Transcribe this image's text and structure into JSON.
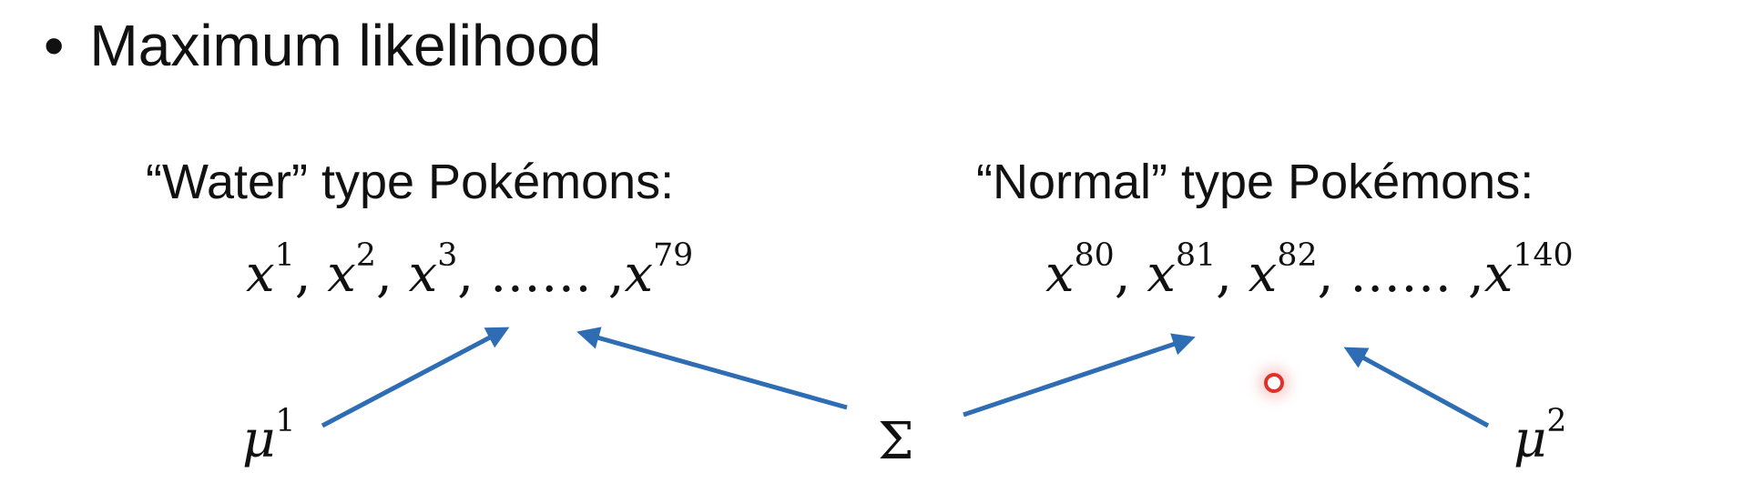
{
  "slide": {
    "bullet": {
      "symbol": "•",
      "text": "Maximum likelihood"
    },
    "water_group": {
      "heading": "“Water” type Pokémons:",
      "samples": {
        "variable": "x",
        "sup1": "1",
        "sup2": "2",
        "sup3": "3",
        "ellipsis": "……",
        "sup_last": "79"
      }
    },
    "normal_group": {
      "heading": "“Normal” type Pokémons:",
      "samples": {
        "variable": "x",
        "sup1": "80",
        "sup2": "81",
        "sup3": "82",
        "ellipsis": "……",
        "sup_last": "140"
      }
    },
    "params": {
      "mu1": {
        "symbol": "μ",
        "sup": "1"
      },
      "sigma": {
        "symbol": "Σ"
      },
      "mu2": {
        "symbol": "μ",
        "sup": "2"
      }
    },
    "colors": {
      "arrow": "#2e6db4",
      "text": "#111111",
      "pointer": "#e0302a"
    }
  }
}
